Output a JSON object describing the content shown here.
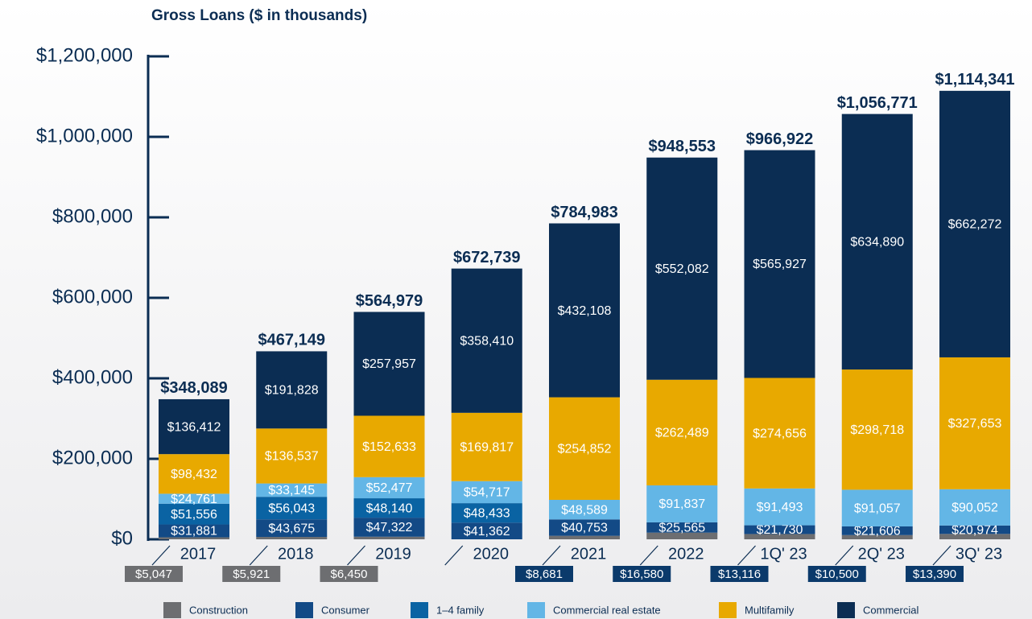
{
  "chart_data": {
    "type": "stacked_bar",
    "title": "Gross Loans ($ in thousands)",
    "categories": [
      "2017",
      "2018",
      "2019",
      "2020",
      "2021",
      "2022",
      "1Q' 23",
      "2Q' 23",
      "3Q' 23"
    ],
    "series": [
      {
        "name": "Construction",
        "color": "#6d6e71",
        "values": [
          5047,
          5921,
          6450,
          null,
          8681,
          16580,
          13116,
          10500,
          13390
        ],
        "value_labels": [
          "$5,047",
          "$5,921",
          "$6,450",
          null,
          "$8,681",
          "$16,580",
          "$13,116",
          "$10,500",
          "$13,390"
        ]
      },
      {
        "name": "Consumer",
        "color": "#134a86",
        "values": [
          31881,
          43675,
          47322,
          41362,
          40753,
          25565,
          21730,
          21606,
          20974
        ],
        "value_labels": [
          "$31,881",
          "$43,675",
          "$47,322",
          "$41,362",
          "$40,753",
          "$25,565",
          "$21,730",
          "$21,606",
          "$20,974"
        ]
      },
      {
        "name": "1–4 family",
        "color": "#0a63a3",
        "values": [
          51556,
          56043,
          48140,
          48433,
          null,
          null,
          null,
          null,
          null
        ],
        "value_labels": [
          "$51,556",
          "$56,043",
          "$48,140",
          "$48,433",
          null,
          null,
          null,
          null,
          null
        ]
      },
      {
        "name": "Commercial real estate",
        "color": "#63b6e6",
        "values": [
          24761,
          33145,
          52477,
          54717,
          48589,
          91837,
          91493,
          91057,
          90052
        ],
        "value_labels": [
          "$24,761",
          "$33,145",
          "$52,477",
          "$54,717",
          "$48,589",
          "$91,837",
          "$91,493",
          "$91,057",
          "$90,052"
        ]
      },
      {
        "name": "Multifamily",
        "color": "#e8a900",
        "values": [
          98432,
          136537,
          152633,
          169817,
          254852,
          262489,
          274656,
          298718,
          327653
        ],
        "value_labels": [
          "$98,432",
          "$136,537",
          "$152,633",
          "$169,817",
          "$254,852",
          "$262,489",
          "$274,656",
          "$298,718",
          "$327,653"
        ]
      },
      {
        "name": "Commercial",
        "color": "#0b2d53",
        "values": [
          136412,
          191828,
          257957,
          358410,
          432108,
          552082,
          565927,
          634890,
          662272
        ],
        "value_labels": [
          "$136,412",
          "$191,828",
          "$257,957",
          "$358,410",
          "$432,108",
          "$552,082",
          "$565,927",
          "$634,890",
          "$662,272"
        ]
      }
    ],
    "totals": {
      "values": [
        348089,
        467149,
        564979,
        672739,
        784983,
        948553,
        966922,
        1056771,
        1114341
      ],
      "value_labels": [
        "$348,089",
        "$467,149",
        "$564,979",
        "$672,739",
        "$784,983",
        "$948,553",
        "$966,922",
        "$1,056,771",
        "$1,114,341"
      ]
    },
    "ylim": [
      0,
      1200000
    ],
    "yticks": [
      {
        "value": 0,
        "label": "$0"
      },
      {
        "value": 200000,
        "label": "$200,000"
      },
      {
        "value": 400000,
        "label": "$400,000"
      },
      {
        "value": 600000,
        "label": "$600,000"
      },
      {
        "value": 800000,
        "label": "$800,000"
      },
      {
        "value": 1000000,
        "label": "$1,000,000"
      },
      {
        "value": 1200000,
        "label": "$1,200,000"
      }
    ],
    "legend": "bottom"
  }
}
